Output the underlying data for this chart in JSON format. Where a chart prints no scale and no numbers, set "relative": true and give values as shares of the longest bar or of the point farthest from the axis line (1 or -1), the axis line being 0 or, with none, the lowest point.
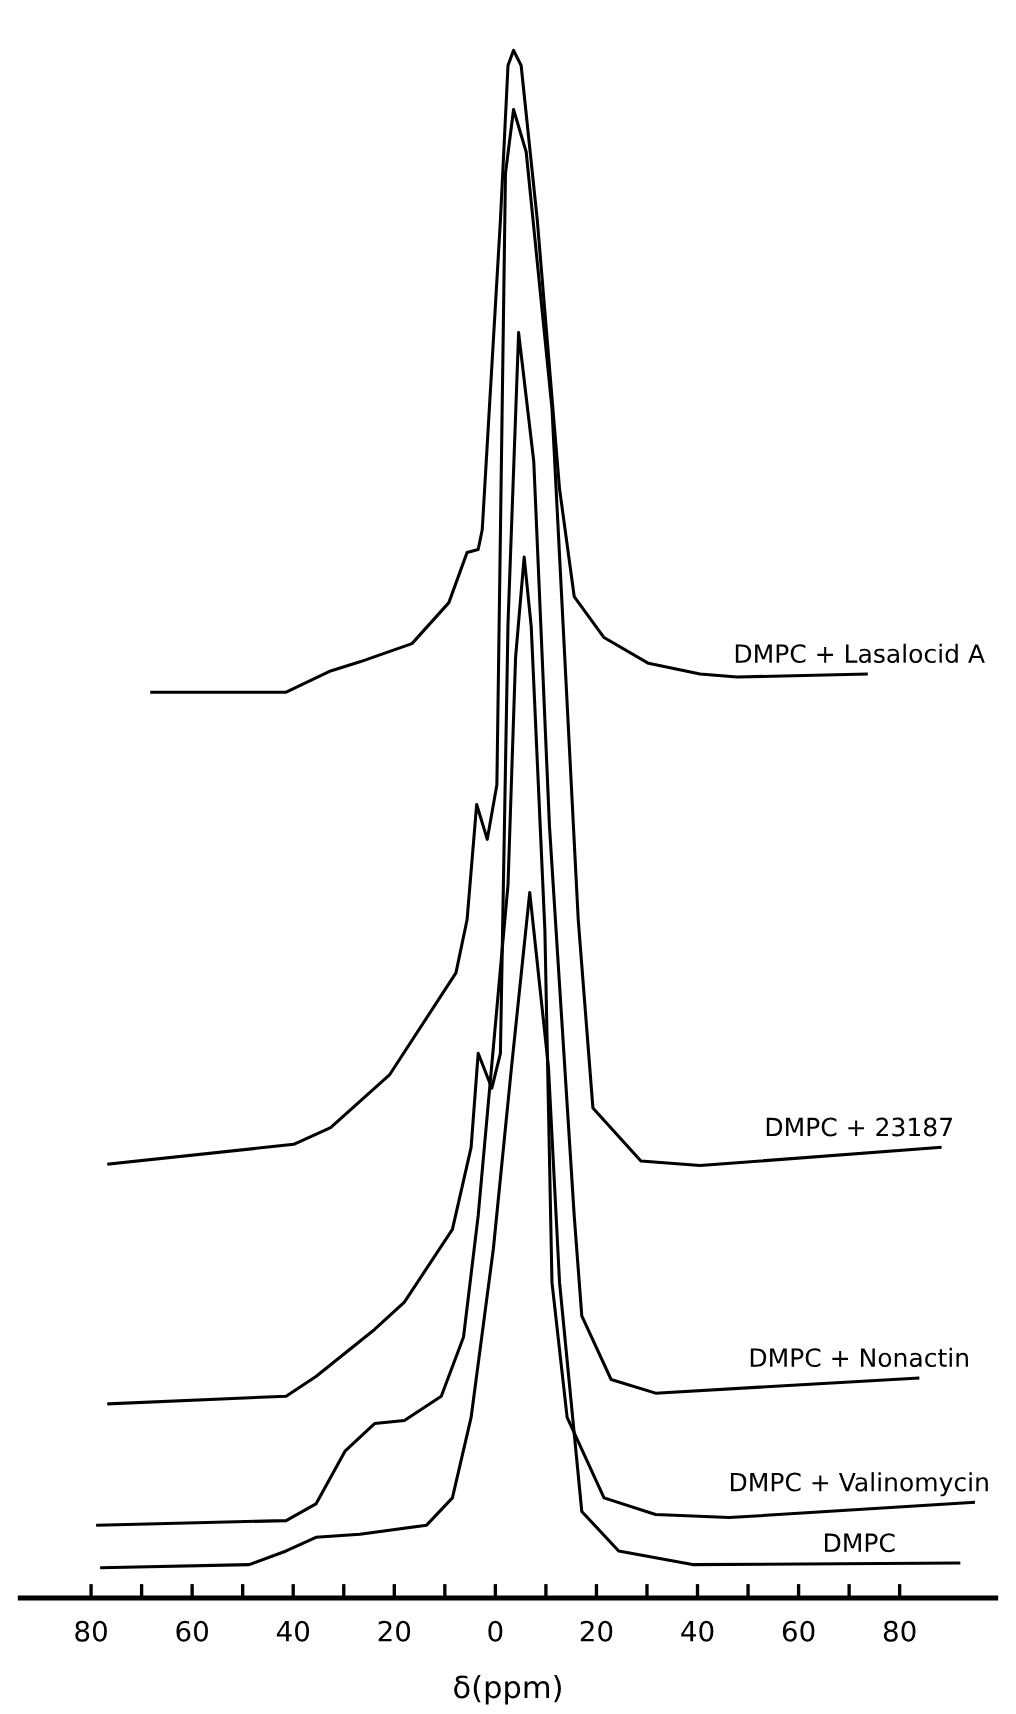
{
  "chart_data": {
    "type": "line",
    "relative": true,
    "xlabel": "δ(ppm)",
    "xlim": [
      94,
      -99
    ],
    "xticks": [
      80,
      {
        "value": 70,
        "label": null
      },
      60,
      {
        "value": 50,
        "label": null
      },
      40,
      {
        "value": 30,
        "label": null
      },
      20,
      {
        "value": 10,
        "label": null
      },
      0,
      {
        "value": -10,
        "label": null
      },
      {
        "value": -20,
        "label": "20"
      },
      {
        "value": -30,
        "label": null
      },
      {
        "value": -40,
        "label": "40"
      },
      {
        "value": -50,
        "label": null
      },
      {
        "value": -60,
        "label": "60"
      },
      {
        "value": -70,
        "label": null
      },
      {
        "value": -80,
        "label": "80"
      }
    ],
    "tick_labels": "x",
    "grid": false,
    "legend": false,
    "marker": "none",
    "line_style": "solid",
    "series": [
      {
        "name": "DMPC + Lasalocid A",
        "color": "#000000",
        "x": [
          68,
          41.4,
          32.6,
          26.8,
          16.5,
          9.2,
          5.6,
          3.4,
          2.6,
          -1.0,
          -2.5,
          -3.6,
          -5.1,
          -8.3,
          -12.7,
          -15.6,
          -21.5,
          -30.3,
          -40.5,
          -47.8,
          -73.4
        ],
        "values": [
          0.577,
          0.577,
          0.591,
          0.597,
          0.609,
          0.636,
          0.669,
          0.671,
          0.684,
          0.888,
          0.99,
          1.0,
          0.99,
          0.888,
          0.711,
          0.64,
          0.613,
          0.596,
          0.589,
          0.587,
          0.589
        ]
      },
      {
        "name": "DMPC + 23187",
        "color": "#000000",
        "x": [
          76.5,
          39.9,
          32.6,
          20.9,
          7.8,
          5.6,
          3.7,
          1.6,
          -0.3,
          -2.0,
          -3.6,
          -6.1,
          -11.2,
          -16.4,
          -19.3,
          -28.8,
          -40.5,
          -88
        ],
        "values": [
          0.266,
          0.279,
          0.29,
          0.325,
          0.392,
          0.427,
          0.503,
          0.48,
          0.516,
          0.919,
          0.961,
          0.933,
          0.764,
          0.427,
          0.303,
          0.268,
          0.265,
          0.277
        ]
      },
      {
        "name": "DMPC + Nonactin",
        "color": "#000000",
        "x": [
          76.5,
          41.4,
          35.5,
          23.9,
          18.0,
          8.5,
          4.8,
          3.4,
          0.7,
          -1.0,
          -2.5,
          -4.6,
          -7.6,
          -10.7,
          -15.6,
          -17.1,
          -22.9,
          -31.7,
          -83.6
        ],
        "values": [
          0.108,
          0.113,
          0.126,
          0.157,
          0.175,
          0.223,
          0.277,
          0.339,
          0.316,
          0.339,
          0.622,
          0.814,
          0.729,
          0.489,
          0.232,
          0.166,
          0.124,
          0.115,
          0.125
        ]
      },
      {
        "name": "DMPC + Valinomycin",
        "color": "#000000",
        "x": [
          78.7,
          41.4,
          35.5,
          29.7,
          23.9,
          18.0,
          10.7,
          6.3,
          3.4,
          -2.5,
          -4.0,
          -5.7,
          -7.1,
          -9.8,
          -11.2,
          -14.2,
          -21.5,
          -31.7,
          -46.3,
          -94.6
        ],
        "values": [
          0.028,
          0.031,
          0.042,
          0.077,
          0.095,
          0.097,
          0.113,
          0.152,
          0.232,
          0.45,
          0.6,
          0.666,
          0.62,
          0.42,
          0.188,
          0.099,
          0.046,
          0.035,
          0.033,
          0.043
        ]
      },
      {
        "name": "DMPC",
        "color": "#000000",
        "x": [
          77.9,
          48.7,
          41.4,
          35.5,
          26.8,
          13.6,
          8.5,
          4.8,
          0.4,
          -3.2,
          -6.8,
          -10.5,
          -12.7,
          -17.1,
          -24.4,
          -39.0,
          -91.7
        ],
        "values": [
          0.0,
          0.002,
          0.011,
          0.02,
          0.022,
          0.028,
          0.046,
          0.099,
          0.21,
          0.33,
          0.445,
          0.33,
          0.188,
          0.037,
          0.011,
          0.002,
          0.003
        ]
      }
    ]
  }
}
